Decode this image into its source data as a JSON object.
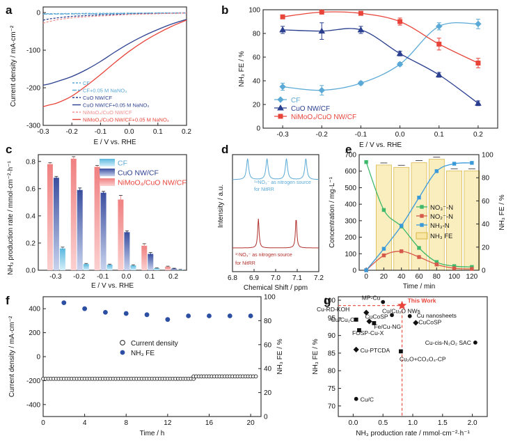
{
  "colors": {
    "cf": "#5aa9d6",
    "cuo": "#2a3f8f",
    "nimoo4": "#e8443a",
    "nimoo4_light": "#f29090",
    "no3": "#3fb86b",
    "no2": "#d65a4a",
    "nh3n": "#3a9ad9",
    "nh3fe_bar": "#f6e08a",
    "star": "#e8443a"
  },
  "panels": {
    "a": {
      "letter": "a"
    },
    "b": {
      "letter": "b"
    },
    "c": {
      "letter": "c"
    },
    "d": {
      "letter": "d"
    },
    "e": {
      "letter": "e"
    },
    "f": {
      "letter": "f"
    },
    "g": {
      "letter": "g"
    }
  },
  "chart_data": [
    {
      "id": "a",
      "type": "line",
      "xlabel": "E / V vs. RHE",
      "ylabel": "Current density / mA·cm⁻²",
      "xlim": [
        -0.3,
        0.2
      ],
      "ylim": [
        -300,
        15
      ],
      "xticks": [
        "-0.3",
        "-0.2",
        "-0.1",
        "0.0",
        "0.1",
        "0.2"
      ],
      "yticks": [
        "-300",
        "-200",
        "-100",
        "0"
      ],
      "series": [
        {
          "name": "CF",
          "x": [
            -0.3,
            -0.2,
            -0.1,
            0.0,
            0.1,
            0.2
          ],
          "y": [
            -3,
            -2.5,
            -2,
            -1.5,
            -1,
            -0.5
          ]
        },
        {
          "name": "CF+0.05 M NaNO₃",
          "x": [
            -0.3,
            -0.2,
            -0.1,
            0.0,
            0.1,
            0.2
          ],
          "y": [
            -4,
            -3.5,
            -3,
            -2,
            -1.5,
            -1
          ]
        },
        {
          "name": "CuO NW/CF",
          "x": [
            -0.3,
            -0.28,
            -0.25,
            -0.2,
            -0.15,
            -0.1,
            -0.05,
            0.0,
            0.05,
            0.1,
            0.15,
            0.2
          ],
          "y": [
            -20,
            -17,
            -14,
            -10,
            -8,
            -6,
            -5,
            -4,
            -3,
            -2.5,
            -2,
            -1
          ]
        },
        {
          "name": "CuO NW/CF+0.05 M NaNO₃",
          "x": [
            -0.3,
            -0.28,
            -0.25,
            -0.2,
            -0.15,
            -0.1,
            -0.05,
            0.0,
            0.05,
            0.1,
            0.15,
            0.2
          ],
          "y": [
            -193,
            -190,
            -183,
            -170,
            -152,
            -130,
            -105,
            -82,
            -62,
            -45,
            -30,
            -18
          ]
        },
        {
          "name": "NiMoO₄/CuO NW/CF",
          "x": [
            -0.3,
            -0.28,
            -0.25,
            -0.2,
            -0.15,
            -0.1,
            -0.05,
            0.0,
            0.05,
            0.1,
            0.15,
            0.2
          ],
          "y": [
            -28,
            -24,
            -19,
            -14,
            -11,
            -9,
            -7,
            -5,
            -4,
            -3,
            -2,
            -1
          ]
        },
        {
          "name": "NiMoO₄/CuO NW/CF+0.05 M NaNO₃",
          "x": [
            -0.3,
            -0.28,
            -0.25,
            -0.2,
            -0.15,
            -0.1,
            -0.05,
            0.0,
            0.05,
            0.1,
            0.15,
            0.2
          ],
          "y": [
            -250,
            -246,
            -240,
            -222,
            -195,
            -165,
            -133,
            -103,
            -77,
            -55,
            -36,
            -20
          ]
        }
      ]
    },
    {
      "id": "b",
      "type": "line",
      "xlabel": "E / V vs. RHE",
      "ylabel": "NH₃ FE / %",
      "xlim": [
        -0.35,
        0.25
      ],
      "ylim": [
        0,
        100
      ],
      "xticks": [
        "-0.3",
        "-0.2",
        "-0.1",
        "0.0",
        "0.1",
        "0.2"
      ],
      "yticks": [
        "0",
        "20",
        "40",
        "60",
        "80",
        "100"
      ],
      "series": [
        {
          "name": "CF",
          "x": [
            -0.3,
            -0.2,
            -0.1,
            0.0,
            0.1,
            0.2
          ],
          "y": [
            35,
            32,
            38,
            54,
            86,
            88
          ],
          "err": [
            3,
            4,
            1.5,
            1.5,
            3,
            4
          ]
        },
        {
          "name": "CuO NW/CF",
          "x": [
            -0.3,
            -0.2,
            -0.1,
            0.0,
            0.1,
            0.2
          ],
          "y": [
            83,
            82,
            83,
            63,
            45,
            21
          ],
          "err": [
            3,
            7,
            3,
            2,
            2,
            2
          ]
        },
        {
          "name": "NiMoO₄/CuO NW/CF",
          "x": [
            -0.3,
            -0.2,
            -0.1,
            0.0,
            0.1,
            0.2
          ],
          "y": [
            94,
            98,
            97,
            90,
            71,
            55
          ],
          "err": [
            1,
            1,
            1,
            3,
            5,
            4
          ]
        }
      ]
    },
    {
      "id": "c",
      "type": "bar",
      "xlabel": "E / V vs. RHE",
      "ylabel": "NH₃ production rate / mmol·cm⁻²·h⁻¹",
      "categories": [
        "-0.3",
        "-0.2",
        "-0.1",
        "0.0",
        "0.1",
        "0.2"
      ],
      "ylim": [
        0,
        0.85
      ],
      "yticks": [
        "0.0",
        "0.2",
        "0.4",
        "0.6",
        "0.8"
      ],
      "series": [
        {
          "name": "NiMoO₄/CuO NW/CF",
          "values": [
            0.78,
            0.82,
            0.76,
            0.52,
            0.18,
            0.025
          ],
          "err": [
            0.01,
            0.015,
            0.01,
            0.03,
            0.015,
            0.005
          ]
        },
        {
          "name": "CuO NW/CF",
          "values": [
            0.68,
            0.59,
            0.57,
            0.28,
            0.12,
            0.012
          ],
          "err": [
            0.01,
            0.015,
            0.01,
            0.01,
            0.01,
            0.003
          ]
        },
        {
          "name": "CF",
          "values": [
            0.16,
            0.045,
            0.04,
            0.035,
            0.015,
            0.005
          ],
          "err": [
            0.01,
            0.005,
            0.005,
            0.005,
            0.002,
            0.001
          ]
        }
      ]
    },
    {
      "id": "d",
      "type": "line",
      "xlabel": "Chemical Shift / ppm",
      "ylabel": "Intensity / a.u.",
      "xlim": [
        6.8,
        7.2
      ],
      "xticks": [
        "6.8",
        "6.9",
        "7.0",
        "7.1",
        "7.2"
      ],
      "series": [
        {
          "name": "¹⁴NO₃⁻ as nitrogen source for NitRR",
          "peaks_ppm": [
            6.87,
            6.96,
            7.05,
            7.14
          ]
        },
        {
          "name": "¹⁵NO₃⁻ as nitrogen source for NitRR",
          "peaks_ppm": [
            6.92,
            7.095
          ]
        }
      ],
      "annotations": [
        "¹⁴NO₃⁻ as nitrogen source",
        "for NitRR",
        "¹⁵NO₃⁻ as nitrogen source",
        "for NitRR"
      ]
    },
    {
      "id": "e",
      "type": "line",
      "xlabel": "Time / min",
      "ylabel": "Concentration / mg·L⁻¹",
      "y2label": "NH₃ FE / %",
      "xlim": [
        -8,
        128
      ],
      "ylim": [
        0,
        700
      ],
      "y2lim": [
        0,
        100
      ],
      "xticks": [
        "0",
        "20",
        "40",
        "60",
        "80",
        "100",
        "120"
      ],
      "yticks": [
        "0",
        "100",
        "200",
        "300",
        "400",
        "500",
        "600",
        "700"
      ],
      "y2ticks": [
        "0",
        "20",
        "40",
        "60",
        "80",
        "100"
      ],
      "series": [
        {
          "name": "NO₃⁻-N",
          "x": [
            0,
            20,
            40,
            60,
            80,
            100,
            120
          ],
          "y": [
            655,
            365,
            265,
            135,
            50,
            25,
            20
          ]
        },
        {
          "name": "NO₂⁻-N",
          "x": [
            0,
            20,
            40,
            60,
            80,
            100,
            120
          ],
          "y": [
            0,
            90,
            115,
            80,
            35,
            12,
            8
          ]
        },
        {
          "name": "NH₃-N",
          "x": [
            0,
            20,
            40,
            60,
            80,
            100,
            120
          ],
          "y": [
            0,
            130,
            270,
            440,
            600,
            645,
            650
          ]
        },
        {
          "name": "NH₃ FE",
          "type": "bar",
          "x": [
            20,
            40,
            60,
            80,
            100,
            120
          ],
          "values": [
            91,
            89,
            93,
            96,
            86,
            86
          ]
        }
      ]
    },
    {
      "id": "f",
      "type": "scatter",
      "xlabel": "Time / h",
      "ylabel": "Current density / mA·cm⁻²",
      "y2label": "NH₃ FE / %",
      "xlim": [
        0,
        21
      ],
      "ylim": [
        -500,
        500
      ],
      "y2lim": [
        0,
        100
      ],
      "xticks": [
        "0",
        "4",
        "8",
        "12",
        "16",
        "20"
      ],
      "yticks": [
        "-400",
        "-200",
        "0",
        "200",
        "400"
      ],
      "y2ticks": [
        "0",
        "20",
        "40",
        "60",
        "80",
        "100"
      ],
      "series": [
        {
          "name": "Current density",
          "x_range": [
            0,
            20.5
          ],
          "segments": [
            [
              0,
              14.5,
              -185
            ],
            [
              14.5,
              20.5,
              -165
            ]
          ]
        },
        {
          "name": "NH₃ FE",
          "x": [
            2,
            4,
            6,
            8,
            10,
            12,
            14,
            16,
            18,
            20
          ],
          "y": [
            95,
            90,
            87,
            86,
            85,
            81,
            84,
            84,
            84,
            84
          ]
        }
      ]
    },
    {
      "id": "g",
      "type": "scatter",
      "xlabel": "NH₃ production rate / mmol·cm⁻²·h⁻¹",
      "ylabel": "NH₃ FE / %",
      "xlim": [
        -0.25,
        2.25
      ],
      "ylim": [
        67,
        101
      ],
      "xticks": [
        "0.0",
        "0.5",
        "1.0",
        "1.5",
        "2.0"
      ],
      "yticks": [
        "70",
        "75",
        "80",
        "85",
        "90",
        "95",
        "100"
      ],
      "series": [
        {
          "name": "This Work",
          "x": 0.82,
          "y": 98.5
        },
        {
          "name": "MP-Cu",
          "x": 0.5,
          "y": 99.5
        },
        {
          "name": "Cu-RD-KOH",
          "x": 0.22,
          "y": 96.5
        },
        {
          "name": "Cu/Cu₂O",
          "x": 0.05,
          "y": 94.5
        },
        {
          "name": "Cu/Cu₂O NWs",
          "x": 0.65,
          "y": 95.8
        },
        {
          "name": "CuCoSP",
          "x": 0.27,
          "y": 94.0
        },
        {
          "name": "Fe/Cu-NG",
          "x": 0.35,
          "y": 93.5
        },
        {
          "name": "Cu nanosheets",
          "x": 0.95,
          "y": 95.5
        },
        {
          "name": "CuCoSP",
          "x": 1.05,
          "y": 93.6
        },
        {
          "name": "FOSP-Cu-X",
          "x": 0.1,
          "y": 91.5
        },
        {
          "name": "Cu-cis-N₂O₂ SAC",
          "x": 2.05,
          "y": 88.0
        },
        {
          "name": "Cu-PTCDA",
          "x": 0.05,
          "y": 86.0
        },
        {
          "name": "Cu₂O+CO₃O₄-CP",
          "x": 0.8,
          "y": 85.5
        },
        {
          "name": "Cu/C",
          "x": 0.05,
          "y": 72.0
        }
      ]
    }
  ]
}
